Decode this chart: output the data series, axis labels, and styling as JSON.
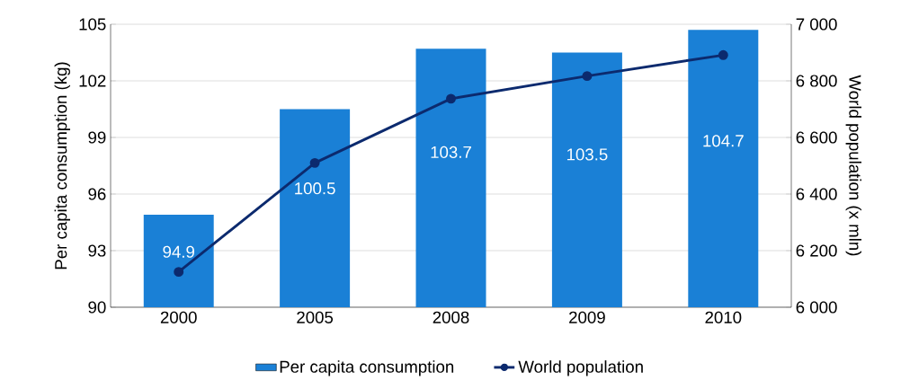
{
  "chart_data": {
    "type": "bar",
    "categories": [
      "2000",
      "2005",
      "2008",
      "2009",
      "2010"
    ],
    "series": [
      {
        "name": "Per capita consumption",
        "color": "#1a80d6",
        "values": [
          94.9,
          100.5,
          103.7,
          103.5,
          104.7
        ],
        "value_labels": [
          "94.9",
          "100.5",
          "103.7",
          "103.5",
          "104.7"
        ]
      },
      {
        "name": "World population",
        "type": "line",
        "axis": "y2",
        "color": "#0c2a6e",
        "marker": "circle",
        "values": [
          6125,
          6510,
          6737,
          6817,
          6891
        ]
      }
    ],
    "ylabel": "Per capita consumption (kg)",
    "y2label": "World population (x mln)",
    "ylim": [
      90,
      105
    ],
    "yticks": [
      90,
      93,
      96,
      99,
      102,
      105
    ],
    "y2lim": [
      6000,
      7000
    ],
    "y2ticks": [
      {
        "value": 6000,
        "label": "6 000"
      },
      {
        "value": 6200,
        "label": "6 200"
      },
      {
        "value": 6400,
        "label": "6 400"
      },
      {
        "value": 6600,
        "label": "6 600"
      },
      {
        "value": 6800,
        "label": "6 800"
      },
      {
        "value": 7000,
        "label": "7 000"
      }
    ],
    "grid": "y",
    "legend": "bottom"
  }
}
